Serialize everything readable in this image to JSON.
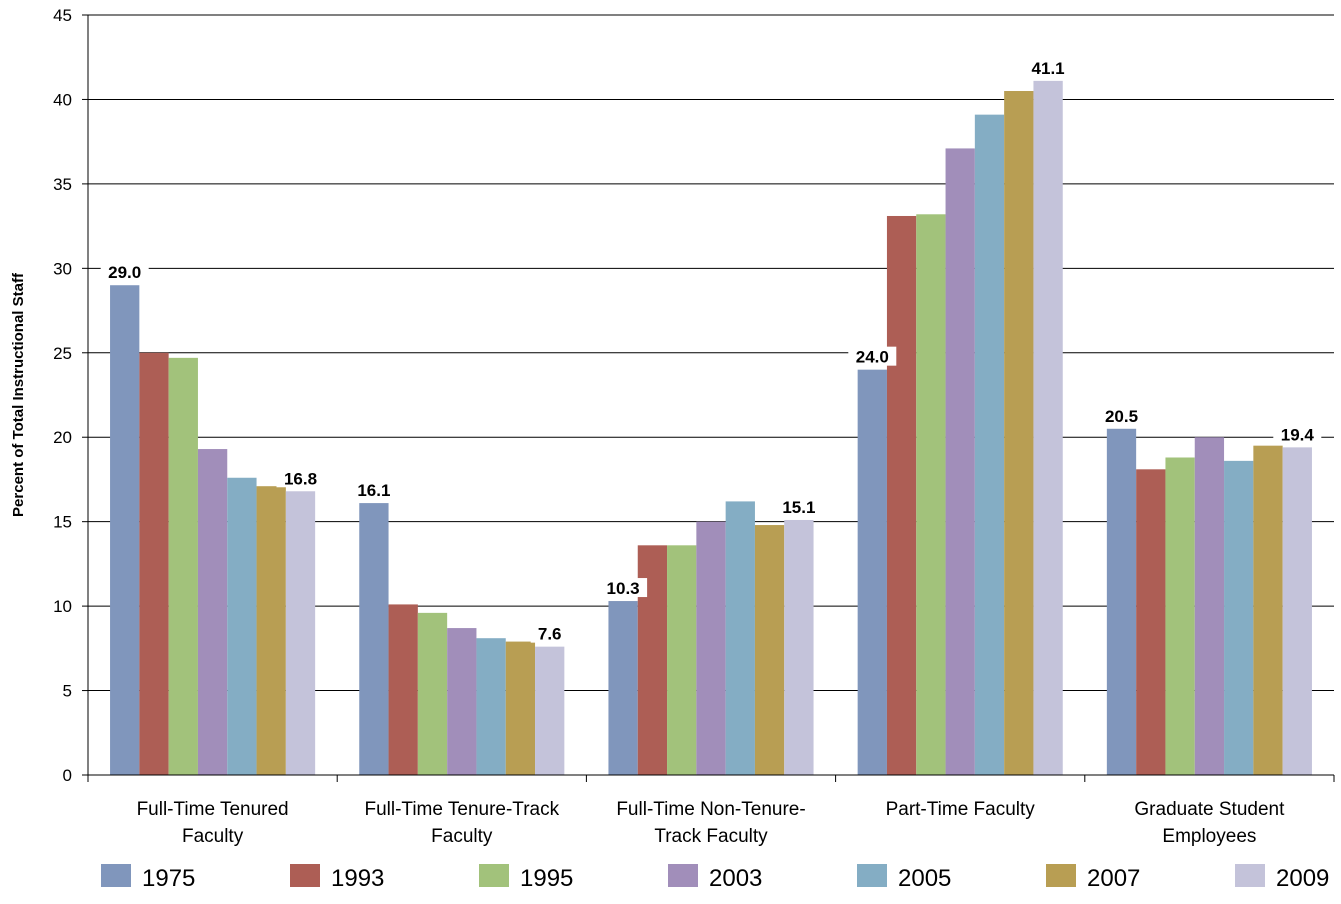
{
  "chart_data": {
    "type": "bar",
    "title": "",
    "xlabel": "",
    "ylabel": "Percent of Total Instructional Staff",
    "ylim": [
      0,
      45
    ],
    "yticks": [
      0,
      5,
      10,
      15,
      20,
      25,
      30,
      35,
      40,
      45
    ],
    "grid": true,
    "legend_position": "bottom",
    "categories": [
      [
        "Full-Time Tenured",
        "Faculty"
      ],
      [
        "Full-Time Tenure-Track",
        "Faculty"
      ],
      [
        "Full-Time Non-Tenure-",
        "Track Faculty"
      ],
      [
        "Part-Time Faculty"
      ],
      [
        "Graduate Student",
        "Employees"
      ]
    ],
    "series": [
      {
        "name": "1975",
        "color": "#8096bc",
        "values": [
          29.0,
          16.1,
          10.3,
          24.0,
          20.5
        ]
      },
      {
        "name": "1993",
        "color": "#ad5e55",
        "values": [
          25.0,
          10.1,
          13.6,
          33.1,
          18.1
        ]
      },
      {
        "name": "1995",
        "color": "#a2c27b",
        "values": [
          24.7,
          9.6,
          13.6,
          33.2,
          18.8
        ]
      },
      {
        "name": "2003",
        "color": "#a18eba",
        "values": [
          19.3,
          8.7,
          15.0,
          37.1,
          20.0
        ]
      },
      {
        "name": "2005",
        "color": "#84adc4",
        "values": [
          17.6,
          8.1,
          16.2,
          39.1,
          18.6
        ]
      },
      {
        "name": "2007",
        "color": "#b89e53",
        "values": [
          17.1,
          7.9,
          14.8,
          40.5,
          19.5
        ]
      },
      {
        "name": "2009",
        "color": "#c4c3da",
        "values": [
          16.8,
          7.6,
          15.1,
          41.1,
          19.4
        ]
      }
    ],
    "data_labels": [
      {
        "category": 0,
        "series": 0,
        "text": "29.0"
      },
      {
        "category": 0,
        "series": 6,
        "text": "16.8"
      },
      {
        "category": 1,
        "series": 0,
        "text": "16.1"
      },
      {
        "category": 1,
        "series": 6,
        "text": "7.6"
      },
      {
        "category": 2,
        "series": 0,
        "text": "10.3"
      },
      {
        "category": 2,
        "series": 6,
        "text": "15.1"
      },
      {
        "category": 3,
        "series": 0,
        "text": "24.0"
      },
      {
        "category": 3,
        "series": 6,
        "text": "41.1"
      },
      {
        "category": 4,
        "series": 0,
        "text": "20.5"
      },
      {
        "category": 4,
        "series": 6,
        "text": "19.4"
      }
    ]
  }
}
